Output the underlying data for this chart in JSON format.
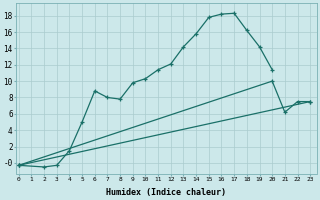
{
  "xlabel": "Humidex (Indice chaleur)",
  "bg_color": "#cce8ea",
  "grid_color": "#aaccce",
  "line_color": "#1a7068",
  "xlim_min": -0.2,
  "xlim_max": 23.5,
  "ylim_min": -1.3,
  "ylim_max": 19.5,
  "curve1_x": [
    0,
    2,
    3,
    4,
    5,
    6,
    7,
    8,
    9,
    10,
    11,
    12,
    13,
    14,
    15,
    16,
    17,
    18,
    19,
    20
  ],
  "curve1_y": [
    -0.3,
    -0.5,
    -0.3,
    1.5,
    5.0,
    8.8,
    8.0,
    7.8,
    9.8,
    10.3,
    11.4,
    12.1,
    14.2,
    15.8,
    17.8,
    18.2,
    18.3,
    16.2,
    14.2,
    11.4
  ],
  "curve2_x": [
    0,
    23
  ],
  "curve2_y": [
    -0.3,
    7.5
  ],
  "curve3_x": [
    0,
    20,
    21,
    22,
    23
  ],
  "curve3_y": [
    -0.3,
    10.0,
    6.2,
    7.5,
    7.5
  ],
  "yticks": [
    0,
    2,
    4,
    6,
    8,
    10,
    12,
    14,
    16,
    18
  ],
  "ytick_labels": [
    "-0",
    "2",
    "4",
    "6",
    "8",
    "10",
    "12",
    "14",
    "16",
    "18"
  ]
}
